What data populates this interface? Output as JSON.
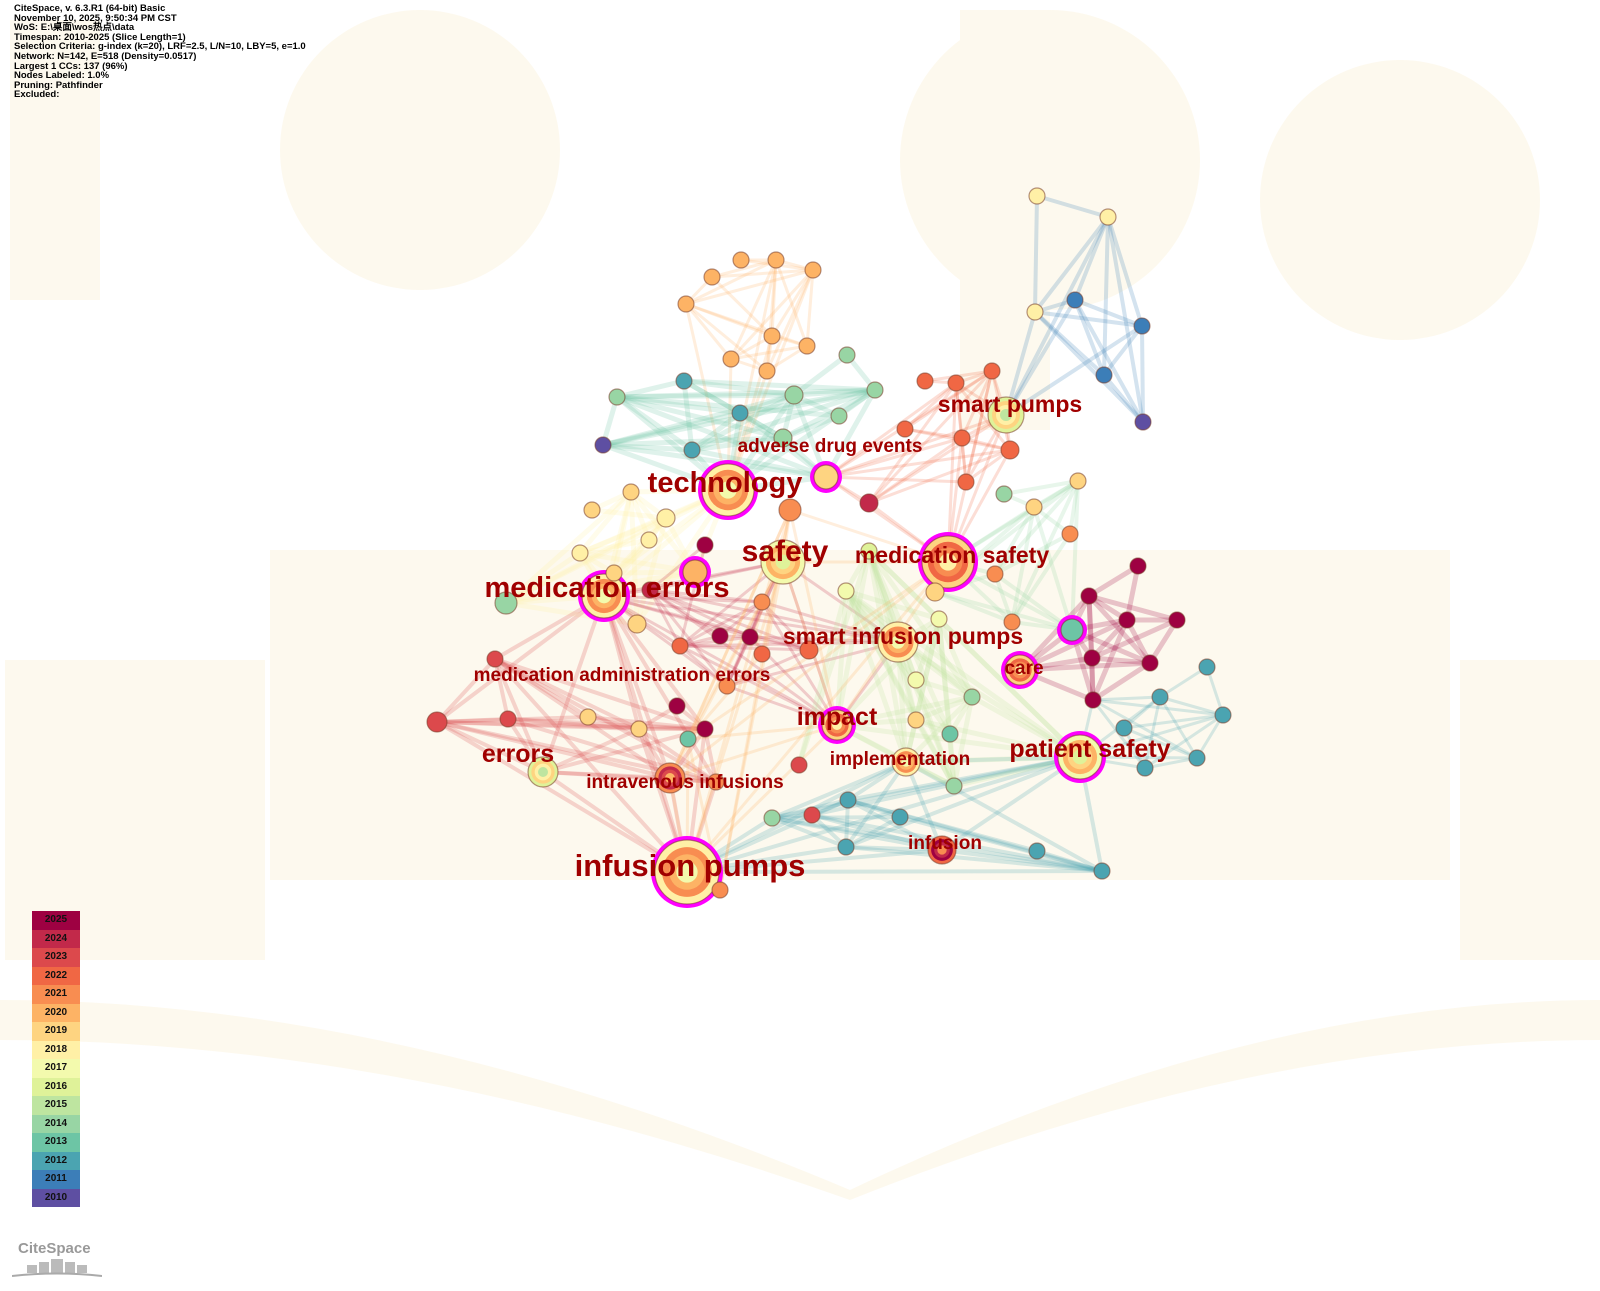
{
  "info": {
    "lines": [
      "CiteSpace, v. 6.3.R1 (64-bit) Basic",
      "November 10, 2025, 9:50:34 PM CST",
      "WoS: E:\\桌面\\wos热点\\data",
      "Timespan: 2010-2025 (Slice Length=1)",
      "Selection Criteria: g-index (k=20), LRF=2.5, L/N=10, LBY=5, e=1.0",
      "Network: N=142, E=518 (Density=0.0517)",
      "Largest 1 CCs: 137 (96%)",
      "Nodes Labeled: 1.0%",
      "Pruning: Pathfinder",
      "Excluded:"
    ]
  },
  "labels": [
    "technology",
    "adverse drug events",
    "smart pumps",
    "safety",
    "medication safety",
    "medication errors",
    "smart infusion pumps",
    "care",
    "medication administration errors",
    "impact",
    "implementation",
    "patient safety",
    "errors",
    "intravenous infusions",
    "infusion",
    "infusion pumps"
  ],
  "legend": {
    "years": [
      "2025",
      "2024",
      "2023",
      "2022",
      "2021",
      "2020",
      "2019",
      "2018",
      "2017",
      "2016",
      "2015",
      "2014",
      "2013",
      "2012",
      "2011",
      "2010"
    ],
    "colors": [
      "#9e0142",
      "#c2294a",
      "#dc494c",
      "#f06744",
      "#f88d51",
      "#fdb365",
      "#fed481",
      "#fff0a6",
      "#f3faad",
      "#dff299",
      "#bee5a0",
      "#98d5a4",
      "#6dc5a5",
      "#4ba4b1",
      "#3c7eb8",
      "#5e4fa2"
    ]
  },
  "logo": "CiteSpace",
  "accent_burst": "#ff00ff"
}
